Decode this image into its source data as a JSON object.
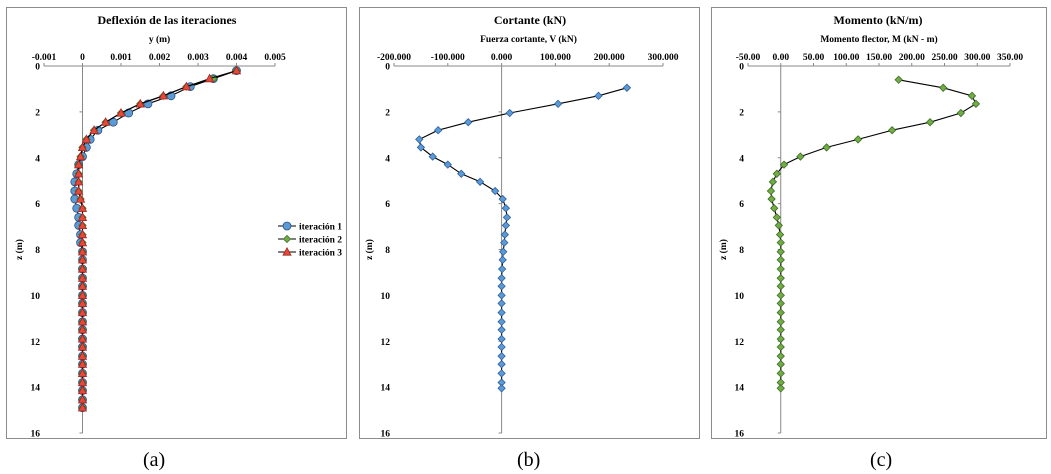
{
  "captions": [
    "(a)",
    "(b)",
    "(c)"
  ],
  "chart_data": [
    {
      "type": "line",
      "title": "Deflexión de las iteraciones",
      "xlabel": "y (m)",
      "ylabel": "z (m)",
      "xlim": [
        -0.001,
        0.005
      ],
      "ylim": [
        0,
        16
      ],
      "y_inverted": true,
      "x_axis_position": "top",
      "xticks": [
        "-0.001",
        "0",
        "0.001",
        "0.002",
        "0.003",
        "0.004",
        "0.005"
      ],
      "yticks": [
        "0",
        "2",
        "4",
        "6",
        "8",
        "10",
        "12",
        "14",
        "16"
      ],
      "grid": false,
      "legend": "right",
      "series": [
        {
          "name": "iteración 1",
          "marker": "circle",
          "color": "#5b9bd5",
          "points": [
            [
              0.004,
              0.2
            ],
            [
              0.0034,
              0.55
            ],
            [
              0.0028,
              0.9
            ],
            [
              0.0023,
              1.3
            ],
            [
              0.0017,
              1.65
            ],
            [
              0.0012,
              2.05
            ],
            [
              0.0008,
              2.45
            ],
            [
              0.0004,
              2.8
            ],
            [
              0.0002,
              3.2
            ],
            [
              0.0001,
              3.55
            ],
            [
              0.0,
              3.95
            ],
            [
              -0.0001,
              4.3
            ],
            [
              -0.00015,
              4.7
            ],
            [
              -0.0002,
              5.05
            ],
            [
              -0.0002,
              5.45
            ],
            [
              -0.0002,
              5.8
            ],
            [
              -0.00015,
              6.2
            ],
            [
              -0.0001,
              6.6
            ],
            [
              -0.0001,
              6.95
            ],
            [
              -5e-05,
              7.35
            ],
            [
              -5e-05,
              7.7
            ],
            [
              0,
              8.1
            ],
            [
              0,
              8.45
            ],
            [
              0,
              8.85
            ],
            [
              0,
              9.25
            ],
            [
              0,
              9.6
            ],
            [
              0,
              10.0
            ],
            [
              0,
              10.35
            ],
            [
              0,
              10.75
            ],
            [
              0,
              11.15
            ],
            [
              0,
              11.5
            ],
            [
              0,
              11.9
            ],
            [
              0,
              12.25
            ],
            [
              0,
              12.65
            ],
            [
              0,
              13.0
            ],
            [
              0,
              13.4
            ],
            [
              0,
              13.8
            ],
            [
              0,
              14.15
            ],
            [
              0,
              14.55
            ],
            [
              0,
              14.9
            ]
          ]
        },
        {
          "name": "iteración 2",
          "marker": "diamond",
          "color": "#70ad47",
          "points": [
            [
              0.004,
              0.2
            ],
            [
              0.0034,
              0.55
            ],
            [
              0.0027,
              0.9
            ],
            [
              0.0021,
              1.3
            ],
            [
              0.0015,
              1.65
            ],
            [
              0.001,
              2.05
            ],
            [
              0.0006,
              2.45
            ],
            [
              0.0003,
              2.8
            ],
            [
              0.0001,
              3.2
            ],
            [
              0.0,
              3.55
            ],
            [
              -5e-05,
              3.95
            ],
            [
              -0.0001,
              4.3
            ],
            [
              -0.0001,
              4.7
            ],
            [
              -0.0001,
              5.05
            ],
            [
              -0.0001,
              5.45
            ],
            [
              -5e-05,
              5.8
            ],
            [
              0,
              6.2
            ],
            [
              0,
              6.6
            ],
            [
              0,
              6.95
            ],
            [
              0,
              7.35
            ],
            [
              0,
              7.7
            ],
            [
              0,
              8.1
            ],
            [
              0,
              8.45
            ],
            [
              0,
              8.85
            ],
            [
              0,
              9.25
            ],
            [
              0,
              9.6
            ],
            [
              0,
              10.0
            ],
            [
              0,
              10.35
            ],
            [
              0,
              10.75
            ],
            [
              0,
              11.15
            ],
            [
              0,
              11.5
            ],
            [
              0,
              11.9
            ],
            [
              0,
              12.25
            ],
            [
              0,
              12.65
            ],
            [
              0,
              13.0
            ],
            [
              0,
              13.4
            ],
            [
              0,
              13.8
            ],
            [
              0,
              14.15
            ],
            [
              0,
              14.55
            ],
            [
              0,
              14.9
            ]
          ]
        },
        {
          "name": "iteración 3",
          "marker": "triangle",
          "color": "#e8483b",
          "points": [
            [
              0.004,
              0.2
            ],
            [
              0.0033,
              0.55
            ],
            [
              0.0027,
              0.9
            ],
            [
              0.0021,
              1.3
            ],
            [
              0.0015,
              1.65
            ],
            [
              0.001,
              2.05
            ],
            [
              0.0006,
              2.45
            ],
            [
              0.0003,
              2.8
            ],
            [
              0.0001,
              3.2
            ],
            [
              0.0,
              3.55
            ],
            [
              -5e-05,
              3.95
            ],
            [
              -0.0001,
              4.3
            ],
            [
              -0.0001,
              4.7
            ],
            [
              -0.0001,
              5.05
            ],
            [
              -0.0001,
              5.45
            ],
            [
              -5e-05,
              5.8
            ],
            [
              0,
              6.2
            ],
            [
              0,
              6.6
            ],
            [
              0,
              6.95
            ],
            [
              0,
              7.35
            ],
            [
              0,
              7.7
            ],
            [
              0,
              8.1
            ],
            [
              0,
              8.45
            ],
            [
              0,
              8.85
            ],
            [
              0,
              9.25
            ],
            [
              0,
              9.6
            ],
            [
              0,
              10.0
            ],
            [
              0,
              10.35
            ],
            [
              0,
              10.75
            ],
            [
              0,
              11.15
            ],
            [
              0,
              11.5
            ],
            [
              0,
              11.9
            ],
            [
              0,
              12.25
            ],
            [
              0,
              12.65
            ],
            [
              0,
              13.0
            ],
            [
              0,
              13.4
            ],
            [
              0,
              13.8
            ],
            [
              0,
              14.15
            ],
            [
              0,
              14.55
            ],
            [
              0,
              14.9
            ]
          ]
        }
      ]
    },
    {
      "type": "line",
      "title": "Cortante (kN)",
      "xlabel": "Fuerza cortante, V (kN)",
      "ylabel": "z (m)",
      "xlim": [
        -200,
        300
      ],
      "ylim": [
        0,
        16
      ],
      "y_inverted": true,
      "x_axis_position": "top",
      "xticks": [
        "-200.000",
        "-100.000",
        "0.000",
        "100.000",
        "200.000",
        "300.000"
      ],
      "yticks": [
        "0",
        "2",
        "4",
        "6",
        "8",
        "10",
        "12",
        "14",
        "16"
      ],
      "grid": false,
      "series": [
        {
          "marker": "diamond",
          "color": "#5b9bd5",
          "points": [
            [
              233,
              0.95
            ],
            [
              180,
              1.3
            ],
            [
              105,
              1.65
            ],
            [
              15,
              2.05
            ],
            [
              -62,
              2.45
            ],
            [
              -118,
              2.8
            ],
            [
              -153,
              3.2
            ],
            [
              -150,
              3.55
            ],
            [
              -128,
              3.95
            ],
            [
              -100,
              4.3
            ],
            [
              -75,
              4.7
            ],
            [
              -40,
              5.05
            ],
            [
              -12,
              5.45
            ],
            [
              2,
              5.8
            ],
            [
              8,
              6.2
            ],
            [
              10,
              6.6
            ],
            [
              8,
              6.95
            ],
            [
              6,
              7.35
            ],
            [
              5,
              7.7
            ],
            [
              3,
              8.1
            ],
            [
              2,
              8.45
            ],
            [
              1,
              8.85
            ],
            [
              0,
              9.25
            ],
            [
              0,
              9.6
            ],
            [
              0,
              10.0
            ],
            [
              0,
              10.35
            ],
            [
              0,
              10.75
            ],
            [
              0,
              11.15
            ],
            [
              0,
              11.5
            ],
            [
              0,
              11.9
            ],
            [
              0,
              12.25
            ],
            [
              0,
              12.65
            ],
            [
              0,
              13.0
            ],
            [
              0,
              13.4
            ],
            [
              0,
              13.8
            ],
            [
              0,
              14.05
            ]
          ]
        }
      ]
    },
    {
      "type": "line",
      "title": "Momento (kN/m)",
      "xlabel": "Momento flector, M (kN - m)",
      "ylabel": "z (m)",
      "xlim": [
        -50,
        350
      ],
      "ylim": [
        0,
        16
      ],
      "y_inverted": true,
      "x_axis_position": "top",
      "xticks": [
        "-50.00",
        "0.00",
        "50.00",
        "100.00",
        "150.00",
        "200.00",
        "250.00",
        "300.00",
        "350.00"
      ],
      "yticks": [
        "0",
        "2",
        "4",
        "6",
        "8",
        "10",
        "12",
        "14",
        "16"
      ],
      "grid": false,
      "series": [
        {
          "marker": "diamond",
          "color": "#70ad47",
          "points": [
            [
              180,
              0.6
            ],
            [
              248,
              0.95
            ],
            [
              292,
              1.3
            ],
            [
              298,
              1.65
            ],
            [
              275,
              2.05
            ],
            [
              228,
              2.45
            ],
            [
              170,
              2.8
            ],
            [
              118,
              3.2
            ],
            [
              70,
              3.55
            ],
            [
              30,
              3.95
            ],
            [
              5,
              4.3
            ],
            [
              -6,
              4.7
            ],
            [
              -12,
              5.05
            ],
            [
              -15,
              5.45
            ],
            [
              -14,
              5.8
            ],
            [
              -10,
              6.2
            ],
            [
              -6,
              6.6
            ],
            [
              -3,
              6.95
            ],
            [
              -1,
              7.35
            ],
            [
              0,
              7.7
            ],
            [
              0,
              8.1
            ],
            [
              0,
              8.45
            ],
            [
              0,
              8.85
            ],
            [
              0,
              9.25
            ],
            [
              0,
              9.6
            ],
            [
              0,
              10.0
            ],
            [
              0,
              10.35
            ],
            [
              0,
              10.75
            ],
            [
              0,
              11.15
            ],
            [
              0,
              11.5
            ],
            [
              0,
              11.9
            ],
            [
              0,
              12.25
            ],
            [
              0,
              12.65
            ],
            [
              0,
              13.0
            ],
            [
              0,
              13.4
            ],
            [
              0,
              13.8
            ],
            [
              0,
              14.05
            ]
          ]
        }
      ]
    }
  ]
}
